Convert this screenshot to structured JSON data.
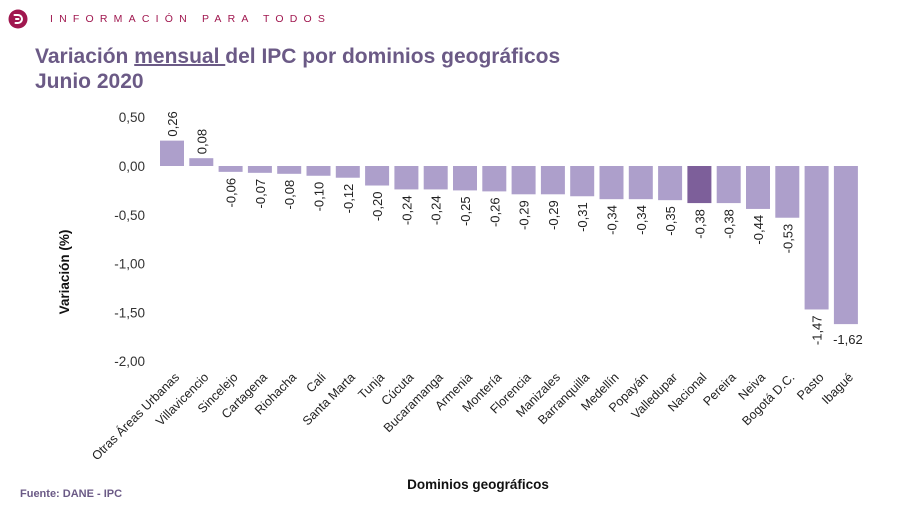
{
  "header": {
    "logo_icon": "dane-logo-icon",
    "tagline": "INFORMACIÓN PARA TODOS",
    "title_prefix": "Variación ",
    "title_underlined": "mensual ",
    "title_suffix": "del IPC por dominios geográficos",
    "title_line2": "Junio  2020"
  },
  "footer": {
    "source": "Fuente: DANE - IPC"
  },
  "colors": {
    "bar": "#ad9fcb",
    "highlight_bar": "#7d5f9a",
    "brand": "#a0174f",
    "title": "#6b5a86"
  },
  "chart_data": {
    "type": "bar",
    "title": "Variación mensual del IPC por dominios geográficos Junio 2020",
    "xlabel": "Dominios geográficos",
    "ylabel": "Variación (%)",
    "ylim": [
      -2.0,
      0.5
    ],
    "yticks": [
      0.5,
      0.0,
      -0.5,
      -1.0,
      -1.5,
      -2.0
    ],
    "ytick_labels": [
      "0,50",
      "0,00",
      "-0,50",
      "-1,00",
      "-1,50",
      "-2,00"
    ],
    "grid": false,
    "legend": "none",
    "highlight_category": "Nacional",
    "categories": [
      "Otras Áreas Urbanas",
      "Villavicencio",
      "Sincelejo",
      "Cartagena",
      "Riohacha",
      "Cali",
      "Santa Marta",
      "Tunja",
      "Cúcuta",
      "Bucaramanga",
      "Armenia",
      "Montería",
      "Florencia",
      "Manizales",
      "Barranquilla",
      "Medellín",
      "Popayán",
      "Valledupar",
      "Nacional",
      "Pereira",
      "Neiva",
      "Bogotá D.C.",
      "Pasto",
      "Ibagué"
    ],
    "values": [
      0.26,
      0.08,
      -0.06,
      -0.07,
      -0.08,
      -0.1,
      -0.12,
      -0.2,
      -0.24,
      -0.24,
      -0.25,
      -0.26,
      -0.29,
      -0.29,
      -0.31,
      -0.34,
      -0.34,
      -0.35,
      -0.38,
      -0.38,
      -0.44,
      -0.53,
      -1.47,
      -1.62
    ],
    "value_labels": [
      "0,26",
      "0,08",
      "-0,06",
      "-0,07",
      "-0,08",
      "-0,10",
      "-0,12",
      "-0,20",
      "-0,24",
      "-0,24",
      "-0,25",
      "-0,26",
      "-0,29",
      "-0,29",
      "-0,31",
      "-0,34",
      "-0,34",
      "-0,35",
      "-0,38",
      "-0,38",
      "-0,44",
      "-0,53",
      "-1,47",
      "-1,62"
    ]
  }
}
